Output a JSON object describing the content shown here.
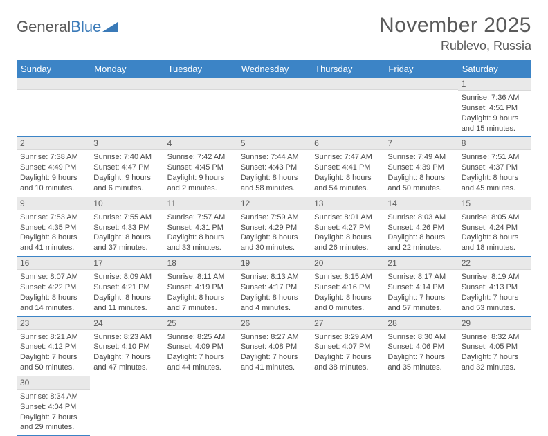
{
  "logo": {
    "text_a": "General",
    "text_b": "Blue"
  },
  "title": "November 2025",
  "location": "Rublevo, Russia",
  "colors": {
    "header_bg": "#3c84c6",
    "header_text": "#ffffff",
    "daynum_bg": "#e9e9e9",
    "row_border": "#3c84c6",
    "page_bg": "#ffffff",
    "text": "#4a4a4a",
    "logo_blue": "#3a7ab8"
  },
  "day_headers": [
    "Sunday",
    "Monday",
    "Tuesday",
    "Wednesday",
    "Thursday",
    "Friday",
    "Saturday"
  ],
  "weeks": [
    [
      {
        "blank": true
      },
      {
        "blank": true
      },
      {
        "blank": true
      },
      {
        "blank": true
      },
      {
        "blank": true
      },
      {
        "blank": true
      },
      {
        "n": "1",
        "sunrise": "Sunrise: 7:36 AM",
        "sunset": "Sunset: 4:51 PM",
        "day1": "Daylight: 9 hours",
        "day2": "and 15 minutes."
      }
    ],
    [
      {
        "n": "2",
        "sunrise": "Sunrise: 7:38 AM",
        "sunset": "Sunset: 4:49 PM",
        "day1": "Daylight: 9 hours",
        "day2": "and 10 minutes."
      },
      {
        "n": "3",
        "sunrise": "Sunrise: 7:40 AM",
        "sunset": "Sunset: 4:47 PM",
        "day1": "Daylight: 9 hours",
        "day2": "and 6 minutes."
      },
      {
        "n": "4",
        "sunrise": "Sunrise: 7:42 AM",
        "sunset": "Sunset: 4:45 PM",
        "day1": "Daylight: 9 hours",
        "day2": "and 2 minutes."
      },
      {
        "n": "5",
        "sunrise": "Sunrise: 7:44 AM",
        "sunset": "Sunset: 4:43 PM",
        "day1": "Daylight: 8 hours",
        "day2": "and 58 minutes."
      },
      {
        "n": "6",
        "sunrise": "Sunrise: 7:47 AM",
        "sunset": "Sunset: 4:41 PM",
        "day1": "Daylight: 8 hours",
        "day2": "and 54 minutes."
      },
      {
        "n": "7",
        "sunrise": "Sunrise: 7:49 AM",
        "sunset": "Sunset: 4:39 PM",
        "day1": "Daylight: 8 hours",
        "day2": "and 50 minutes."
      },
      {
        "n": "8",
        "sunrise": "Sunrise: 7:51 AM",
        "sunset": "Sunset: 4:37 PM",
        "day1": "Daylight: 8 hours",
        "day2": "and 45 minutes."
      }
    ],
    [
      {
        "n": "9",
        "sunrise": "Sunrise: 7:53 AM",
        "sunset": "Sunset: 4:35 PM",
        "day1": "Daylight: 8 hours",
        "day2": "and 41 minutes."
      },
      {
        "n": "10",
        "sunrise": "Sunrise: 7:55 AM",
        "sunset": "Sunset: 4:33 PM",
        "day1": "Daylight: 8 hours",
        "day2": "and 37 minutes."
      },
      {
        "n": "11",
        "sunrise": "Sunrise: 7:57 AM",
        "sunset": "Sunset: 4:31 PM",
        "day1": "Daylight: 8 hours",
        "day2": "and 33 minutes."
      },
      {
        "n": "12",
        "sunrise": "Sunrise: 7:59 AM",
        "sunset": "Sunset: 4:29 PM",
        "day1": "Daylight: 8 hours",
        "day2": "and 30 minutes."
      },
      {
        "n": "13",
        "sunrise": "Sunrise: 8:01 AM",
        "sunset": "Sunset: 4:27 PM",
        "day1": "Daylight: 8 hours",
        "day2": "and 26 minutes."
      },
      {
        "n": "14",
        "sunrise": "Sunrise: 8:03 AM",
        "sunset": "Sunset: 4:26 PM",
        "day1": "Daylight: 8 hours",
        "day2": "and 22 minutes."
      },
      {
        "n": "15",
        "sunrise": "Sunrise: 8:05 AM",
        "sunset": "Sunset: 4:24 PM",
        "day1": "Daylight: 8 hours",
        "day2": "and 18 minutes."
      }
    ],
    [
      {
        "n": "16",
        "sunrise": "Sunrise: 8:07 AM",
        "sunset": "Sunset: 4:22 PM",
        "day1": "Daylight: 8 hours",
        "day2": "and 14 minutes."
      },
      {
        "n": "17",
        "sunrise": "Sunrise: 8:09 AM",
        "sunset": "Sunset: 4:21 PM",
        "day1": "Daylight: 8 hours",
        "day2": "and 11 minutes."
      },
      {
        "n": "18",
        "sunrise": "Sunrise: 8:11 AM",
        "sunset": "Sunset: 4:19 PM",
        "day1": "Daylight: 8 hours",
        "day2": "and 7 minutes."
      },
      {
        "n": "19",
        "sunrise": "Sunrise: 8:13 AM",
        "sunset": "Sunset: 4:17 PM",
        "day1": "Daylight: 8 hours",
        "day2": "and 4 minutes."
      },
      {
        "n": "20",
        "sunrise": "Sunrise: 8:15 AM",
        "sunset": "Sunset: 4:16 PM",
        "day1": "Daylight: 8 hours",
        "day2": "and 0 minutes."
      },
      {
        "n": "21",
        "sunrise": "Sunrise: 8:17 AM",
        "sunset": "Sunset: 4:14 PM",
        "day1": "Daylight: 7 hours",
        "day2": "and 57 minutes."
      },
      {
        "n": "22",
        "sunrise": "Sunrise: 8:19 AM",
        "sunset": "Sunset: 4:13 PM",
        "day1": "Daylight: 7 hours",
        "day2": "and 53 minutes."
      }
    ],
    [
      {
        "n": "23",
        "sunrise": "Sunrise: 8:21 AM",
        "sunset": "Sunset: 4:12 PM",
        "day1": "Daylight: 7 hours",
        "day2": "and 50 minutes."
      },
      {
        "n": "24",
        "sunrise": "Sunrise: 8:23 AM",
        "sunset": "Sunset: 4:10 PM",
        "day1": "Daylight: 7 hours",
        "day2": "and 47 minutes."
      },
      {
        "n": "25",
        "sunrise": "Sunrise: 8:25 AM",
        "sunset": "Sunset: 4:09 PM",
        "day1": "Daylight: 7 hours",
        "day2": "and 44 minutes."
      },
      {
        "n": "26",
        "sunrise": "Sunrise: 8:27 AM",
        "sunset": "Sunset: 4:08 PM",
        "day1": "Daylight: 7 hours",
        "day2": "and 41 minutes."
      },
      {
        "n": "27",
        "sunrise": "Sunrise: 8:29 AM",
        "sunset": "Sunset: 4:07 PM",
        "day1": "Daylight: 7 hours",
        "day2": "and 38 minutes."
      },
      {
        "n": "28",
        "sunrise": "Sunrise: 8:30 AM",
        "sunset": "Sunset: 4:06 PM",
        "day1": "Daylight: 7 hours",
        "day2": "and 35 minutes."
      },
      {
        "n": "29",
        "sunrise": "Sunrise: 8:32 AM",
        "sunset": "Sunset: 4:05 PM",
        "day1": "Daylight: 7 hours",
        "day2": "and 32 minutes."
      }
    ],
    [
      {
        "n": "30",
        "sunrise": "Sunrise: 8:34 AM",
        "sunset": "Sunset: 4:04 PM",
        "day1": "Daylight: 7 hours",
        "day2": "and 29 minutes."
      },
      {
        "blank_trailing": true
      },
      {
        "blank_trailing": true
      },
      {
        "blank_trailing": true
      },
      {
        "blank_trailing": true
      },
      {
        "blank_trailing": true
      },
      {
        "blank_trailing": true
      }
    ]
  ]
}
